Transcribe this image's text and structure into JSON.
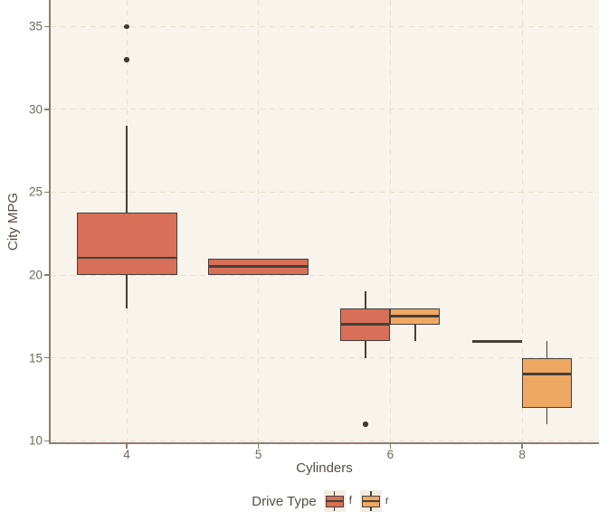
{
  "chart_data": {
    "type": "boxplot",
    "xlabel": "Cylinders",
    "ylabel": "City MPG",
    "x_categories": [
      "4",
      "5",
      "6",
      "8"
    ],
    "y_ticks": [
      "10",
      "15",
      "20",
      "25",
      "30",
      "35"
    ],
    "ylim": [
      9.85,
      36.6
    ],
    "grid": "dashed, major gridlines at each y tick and each category",
    "legend_position": "bottom",
    "panel_bg": "#f8f3eb",
    "grid_color": "#e7e3d2",
    "axis_color": "#8b7e6f",
    "box_border_color": "#45403a",
    "outlier_color": "#3e3a34",
    "legend": {
      "title": "Drive Type",
      "items": [
        {
          "label": "f",
          "color": "#d86f58"
        },
        {
          "label": "r",
          "color": "#efa864"
        }
      ]
    },
    "series": [
      {
        "name": "f",
        "color": "#d86f58",
        "boxes": [
          {
            "category": "4",
            "slot": "full",
            "min": 18,
            "q1": 20,
            "median": 21,
            "q3": 23.75,
            "max": 29,
            "outliers": [
              33,
              35
            ]
          },
          {
            "category": "5",
            "slot": "full",
            "min": 20,
            "q1": 20,
            "median": 20.5,
            "q3": 21,
            "max": 21,
            "outliers": []
          },
          {
            "category": "6",
            "slot": "left",
            "min": 15,
            "q1": 16,
            "median": 17,
            "q3": 18,
            "max": 19,
            "outliers": [
              11
            ]
          },
          {
            "category": "8",
            "slot": "left",
            "min": 16,
            "q1": 16,
            "median": 16,
            "q3": 16,
            "max": 16,
            "outliers": []
          }
        ]
      },
      {
        "name": "r",
        "color": "#efa864",
        "boxes": [
          {
            "category": "6",
            "slot": "right",
            "min": 16,
            "q1": 17,
            "median": 17.5,
            "q3": 18,
            "max": 18,
            "outliers": []
          },
          {
            "category": "8",
            "slot": "right",
            "min": 11,
            "q1": 12,
            "median": 14,
            "q3": 15,
            "max": 16,
            "outliers": []
          }
        ]
      }
    ]
  }
}
